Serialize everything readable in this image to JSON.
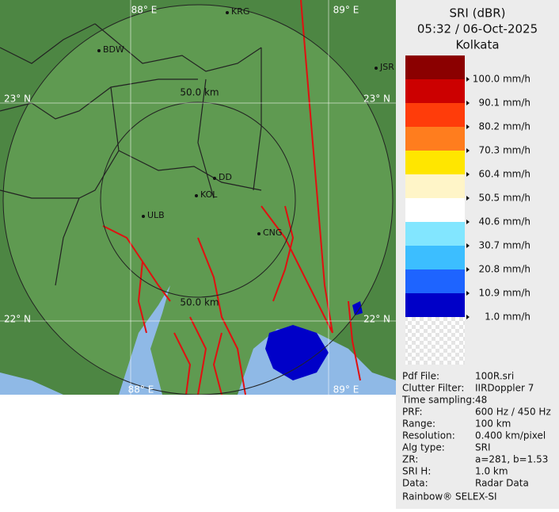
{
  "header": {
    "title": "SRI (dBR)",
    "time": "05:32 / 06-Oct-2025",
    "station": "Kolkata"
  },
  "map": {
    "grid_labels": [
      "88° E",
      "89° E",
      "23° N",
      "23° N",
      "22° N",
      "22° N",
      "88° E",
      "89° E"
    ],
    "cities": [
      "KRG",
      "BDW",
      "JSR",
      "DD",
      "KOL",
      "ULB",
      "CNG"
    ],
    "ring_labels": [
      "50.0 km",
      "50.0 km"
    ]
  },
  "legend": [
    {
      "color": "#8b0000",
      "label": null
    },
    {
      "color": "#cc0000",
      "label": "100.0 mm/h"
    },
    {
      "color": "#ff3c0a",
      "label": "90.1 mm/h"
    },
    {
      "color": "#ff7d1e",
      "label": "80.2 mm/h"
    },
    {
      "color": "#ffe600",
      "label": "70.3 mm/h"
    },
    {
      "color": "#fff5c8",
      "label": "60.4 mm/h"
    },
    {
      "color": "#ffffff",
      "label": "50.5 mm/h"
    },
    {
      "color": "#82e6ff",
      "label": "40.6 mm/h"
    },
    {
      "color": "#3cbeff",
      "label": "30.7 mm/h"
    },
    {
      "color": "#1e64ff",
      "label": "20.8 mm/h"
    },
    {
      "color": "#0000c8",
      "label": "10.9 mm/h"
    },
    {
      "color": "checker",
      "label": "1.0 mm/h"
    }
  ],
  "info": [
    [
      "Pdf File:",
      "100R.sri"
    ],
    [
      "Clutter Filter:",
      "IIRDoppler 7"
    ],
    [
      "Time sampling:",
      "48"
    ],
    [
      "PRF:",
      "600 Hz / 450 Hz"
    ],
    [
      "Range:",
      "100 km"
    ],
    [
      "Resolution:",
      "0.400 km/pixel"
    ],
    [
      "Alg type:",
      "SRI"
    ],
    [
      "ZR:",
      "a=281, b=1.53"
    ],
    [
      "SRI H:",
      "1.0 km"
    ],
    [
      "Data:",
      "Radar Data"
    ]
  ],
  "footer": "Rainbow® SELEX-SI"
}
